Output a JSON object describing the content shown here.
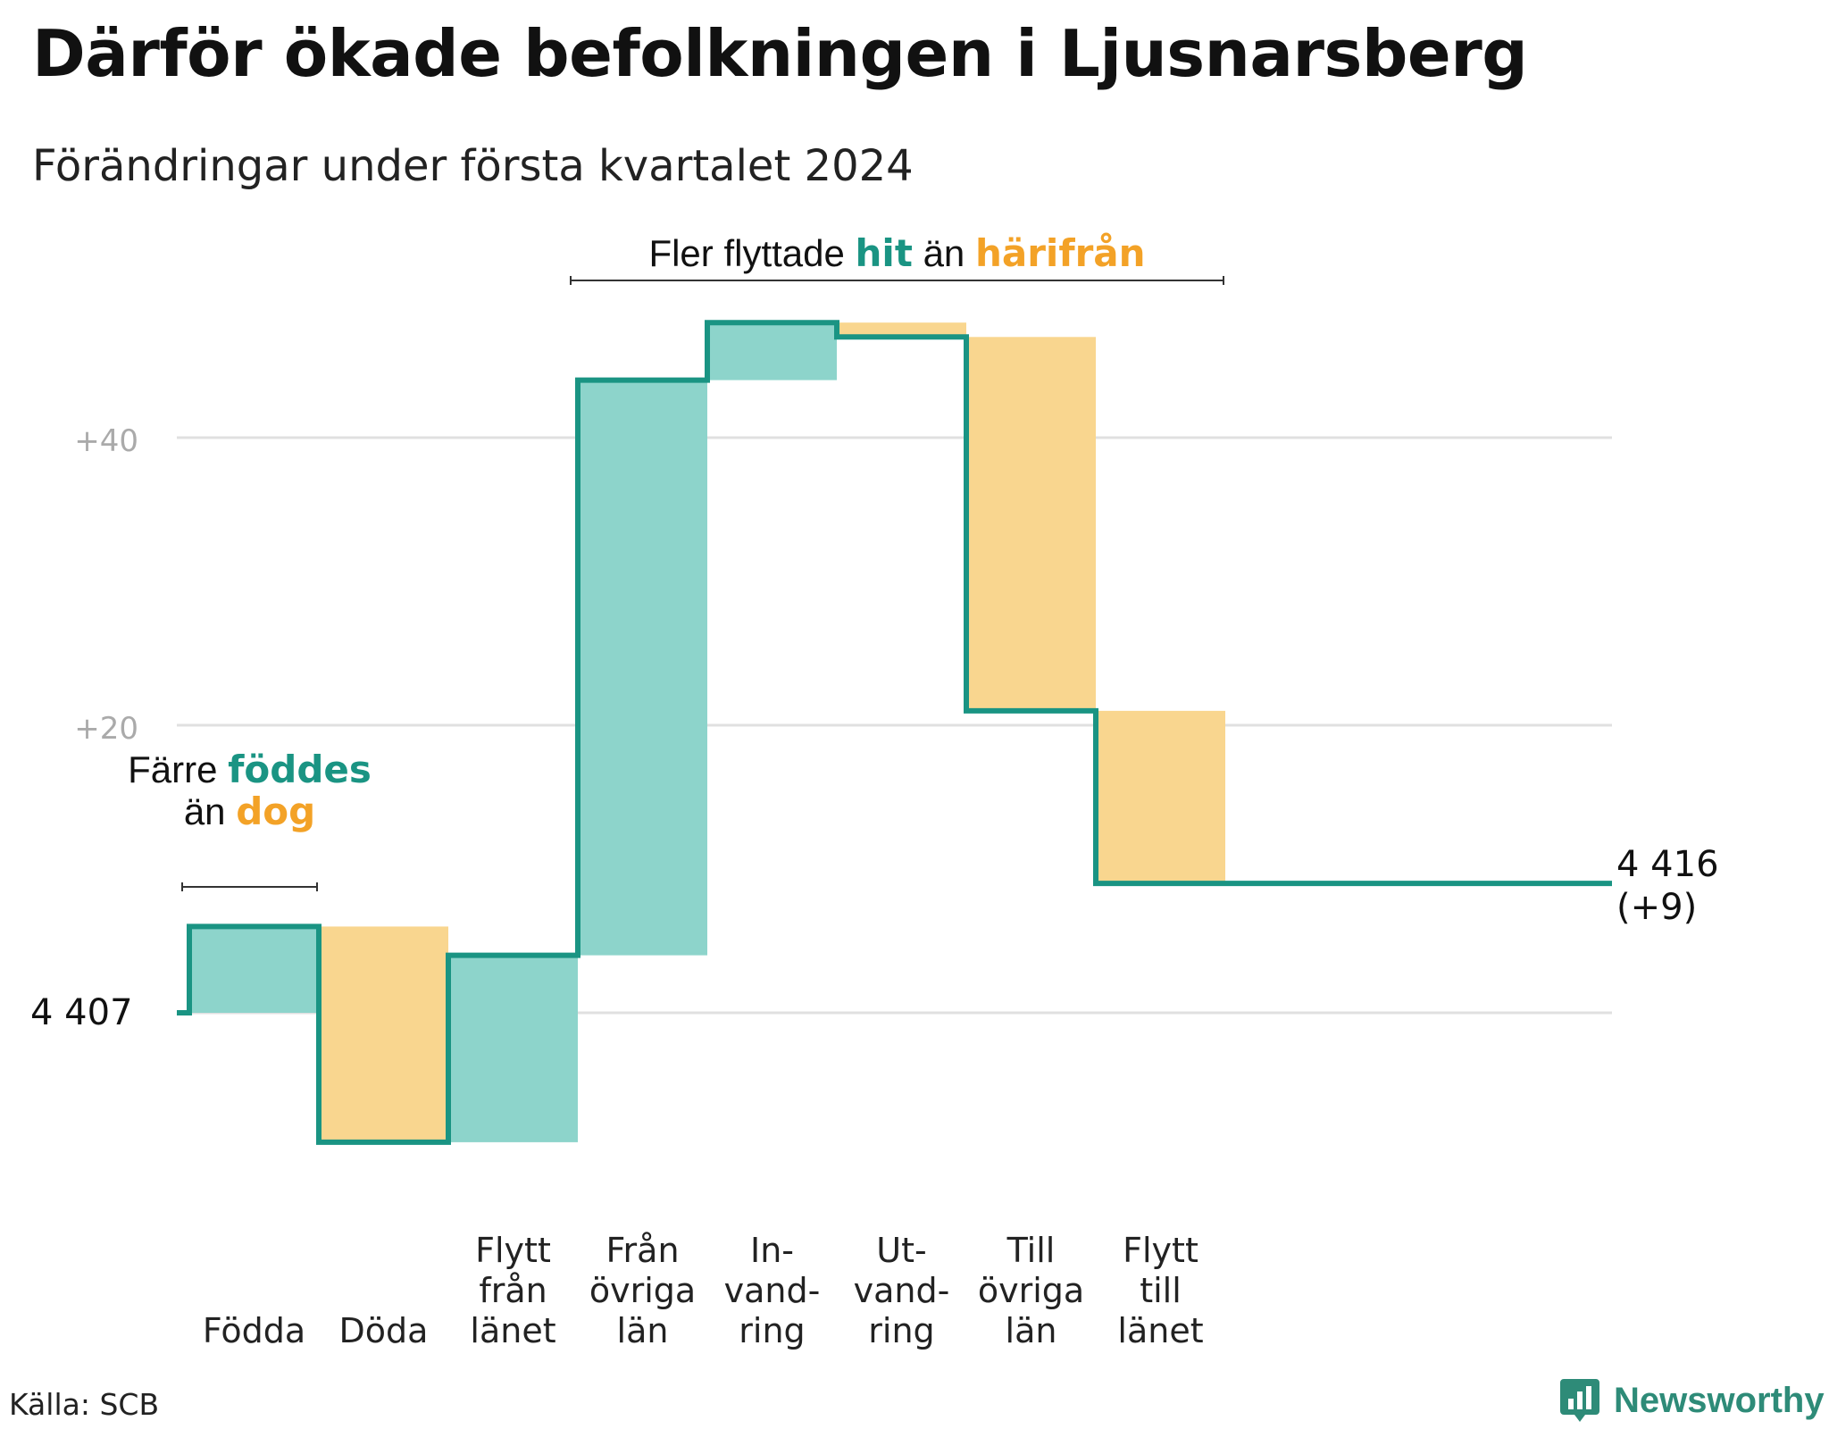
{
  "title": "Därför ökade befolkningen i Ljusnarsberg",
  "subtitle": "Förändringar under första kvartalet 2024",
  "source": "Källa: SCB",
  "brand": "Newsworthy",
  "colors": {
    "inflow": "#8dd4cb",
    "outflow": "#f9d68f",
    "line": "#1a9483",
    "inflow_text": "#1a9483",
    "outflow_text": "#f3a227",
    "grid": "#e0e0e0",
    "tick": "#aaaaaa"
  },
  "chart_data": {
    "type": "bar",
    "start_value": 4407,
    "end_value": 4416,
    "start_label": "4  407",
    "end_label_value": "4 416",
    "end_label_change": "(+9)",
    "y_ticks": [
      {
        "value": 20,
        "label": "+20"
      },
      {
        "value": 40,
        "label": "+40"
      }
    ],
    "ylim": [
      -12,
      48
    ],
    "steps": [
      {
        "label": [
          "Födda"
        ],
        "change": 6,
        "kind": "in"
      },
      {
        "label": [
          "Döda"
        ],
        "change": -15,
        "kind": "out"
      },
      {
        "label": [
          "Flytt",
          "från",
          "länet"
        ],
        "change": 13,
        "kind": "in"
      },
      {
        "label": [
          "Från",
          "övriga",
          "län"
        ],
        "change": 40,
        "kind": "in"
      },
      {
        "label": [
          "In-",
          "vand-",
          "ring"
        ],
        "change": 4,
        "kind": "in"
      },
      {
        "label": [
          "Ut-",
          "vand-",
          "ring"
        ],
        "change": -1,
        "kind": "out"
      },
      {
        "label": [
          "Till",
          "övriga",
          "län"
        ],
        "change": -26,
        "kind": "out"
      },
      {
        "label": [
          "Flytt",
          "till",
          "länet"
        ],
        "change": -12,
        "kind": "out"
      }
    ],
    "annotations": [
      {
        "lines": [
          [
            {
              "text": "Färre "
            },
            {
              "text": "föddes",
              "kind": "in"
            }
          ],
          [
            {
              "text": "än "
            },
            {
              "text": "dog",
              "kind": "out"
            }
          ]
        ],
        "from_step": 0,
        "to_step": 1
      },
      {
        "lines": [
          [
            {
              "text": "Fler flyttade "
            },
            {
              "text": "hit",
              "kind": "in"
            },
            {
              "text": " än "
            },
            {
              "text": "härifrån",
              "kind": "out"
            }
          ]
        ],
        "from_step": 3,
        "to_step": 8
      }
    ]
  }
}
